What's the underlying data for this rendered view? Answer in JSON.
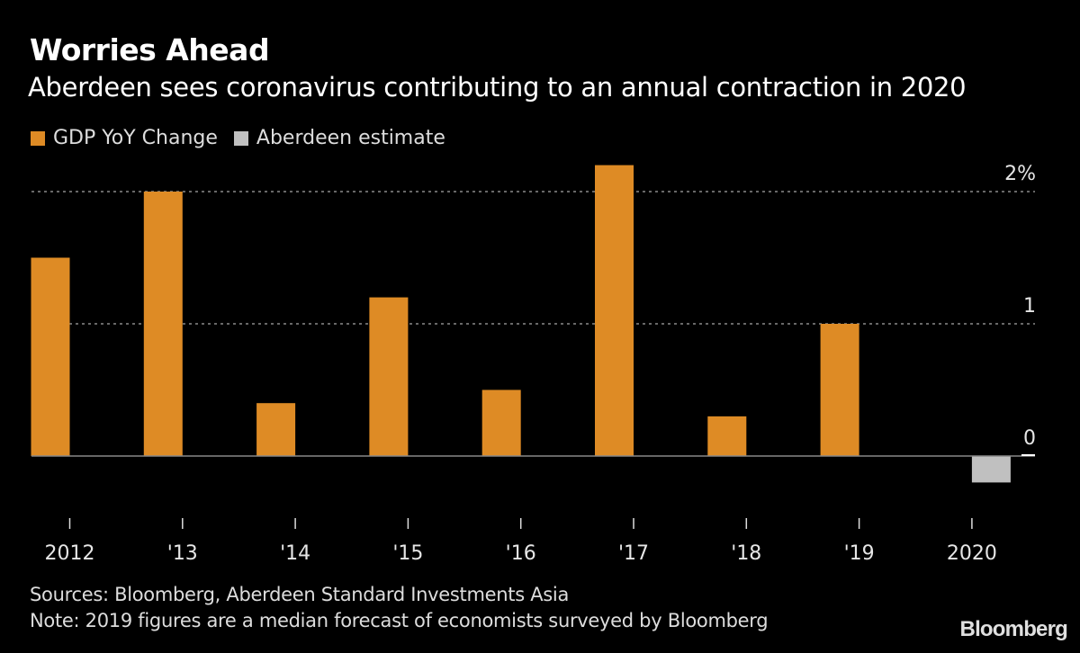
{
  "chart_data": {
    "type": "bar",
    "title": "Worries Ahead",
    "subtitle": "Aberdeen sees coronavirus contributing to an annual contraction in 2020",
    "xlabel": "",
    "ylabel": "",
    "categories": [
      "2012",
      "'13",
      "'14",
      "'15",
      "'16",
      "'17",
      "'18",
      "'19",
      "2020"
    ],
    "series": [
      {
        "name": "GDP YoY Change",
        "color": "#de8b25",
        "values": [
          1.5,
          2.0,
          0.4,
          1.2,
          0.5,
          2.2,
          0.3,
          1.0,
          null
        ]
      },
      {
        "name": "Aberdeen estimate",
        "color": "#c0c0c0",
        "values": [
          null,
          null,
          null,
          null,
          null,
          null,
          null,
          null,
          -0.2
        ]
      }
    ],
    "ylim": [
      -0.2,
      2.3
    ],
    "yticks": [
      {
        "value": 2,
        "label": "2%"
      },
      {
        "value": 1,
        "label": "1"
      },
      {
        "value": 0,
        "label": "0"
      }
    ],
    "grid": true,
    "legend_position": "top-left",
    "sources": "Sources: Bloomberg, Aberdeen Standard Investments Asia",
    "note": "Note: 2019 figures are a median forecast of economists surveyed by Bloomberg",
    "brand": "Bloomberg"
  }
}
